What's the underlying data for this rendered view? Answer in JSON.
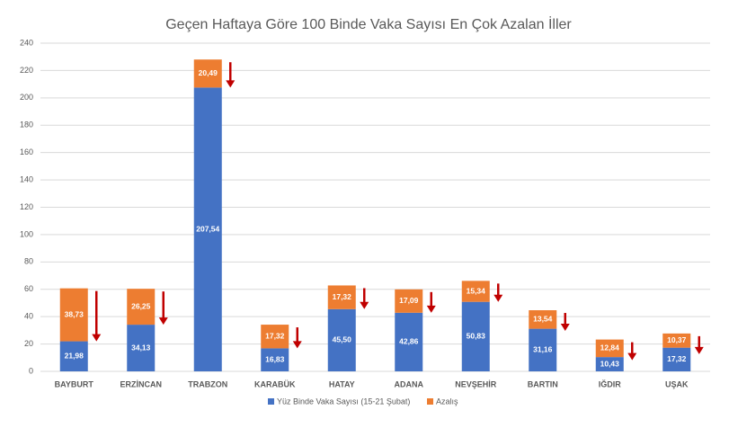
{
  "chart_data": {
    "type": "stacked_bar",
    "title": "Geçen Haftaya Göre 100 Binde Vaka Sayısı En Çok Azalan İller",
    "categories": [
      "BAYBURT",
      "ERZİNCAN",
      "TRABZON",
      "KARABÜK",
      "HATAY",
      "ADANA",
      "NEVŞEHİR",
      "BARTIN",
      "IĞDIR",
      "UŞAK"
    ],
    "series": [
      {
        "name": "Yüz Binde Vaka Sayısı (15-21 Şubat)",
        "color": "#4472c4",
        "values": [
          21.98,
          34.13,
          207.54,
          16.83,
          45.5,
          42.86,
          50.83,
          31.16,
          10.43,
          17.32
        ],
        "value_labels": [
          "21,98",
          "34,13",
          "207,54",
          "16,83",
          "45,50",
          "42,86",
          "50,83",
          "31,16",
          "10,43",
          "17,32"
        ]
      },
      {
        "name": "Azalış",
        "color": "#ed7d31",
        "values": [
          38.73,
          26.25,
          20.49,
          17.32,
          17.32,
          17.09,
          15.34,
          13.54,
          12.84,
          10.37
        ],
        "value_labels": [
          "38,73",
          "26,25",
          "20,49",
          "17,32",
          "17,32",
          "17,09",
          "15,34",
          "13,54",
          "12,84",
          "10,37"
        ]
      }
    ],
    "ylim": [
      0,
      240
    ],
    "yticks": [
      0,
      20,
      40,
      60,
      80,
      100,
      120,
      140,
      160,
      180,
      200,
      220,
      240
    ],
    "grid": true
  }
}
